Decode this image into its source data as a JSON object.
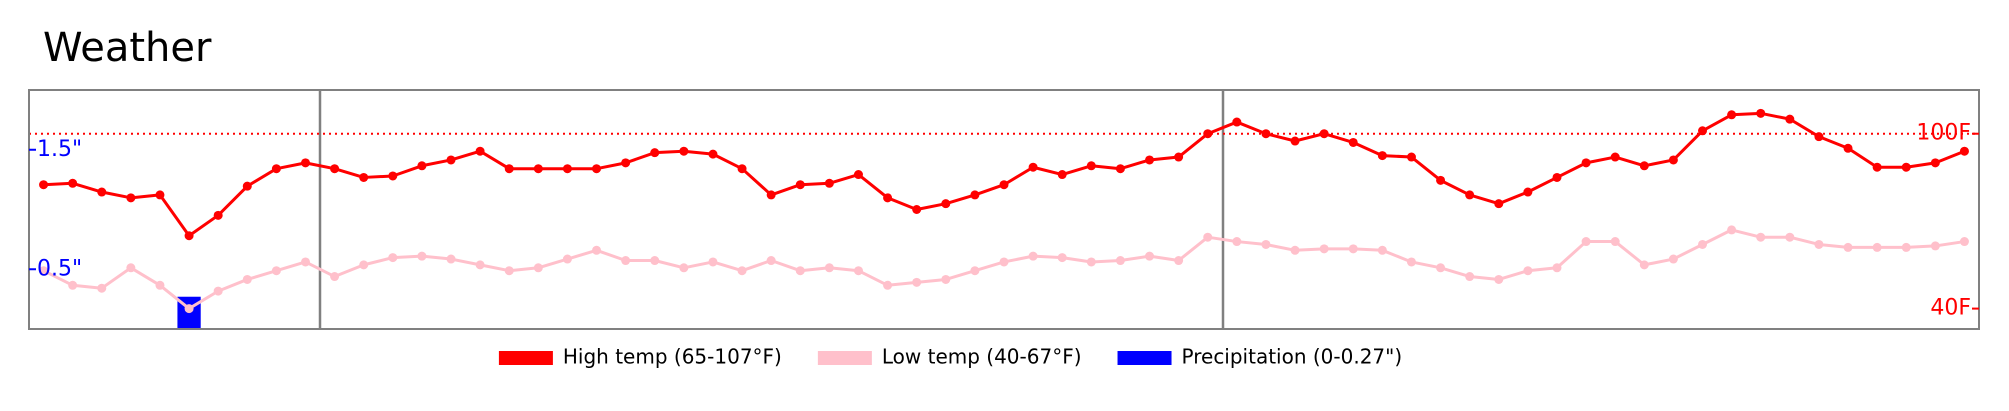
{
  "chart_data": {
    "type": "line",
    "title": "Weather",
    "ylim": [
      0,
      2
    ],
    "yticks": [
      {
        "value": 1.5,
        "label": "1.5\""
      },
      {
        "value": 0.5,
        "label": "0.5\""
      }
    ],
    "y2lim": [
      33,
      115
    ],
    "y2ticks": [
      {
        "value": 100,
        "label": "100F"
      },
      {
        "value": 40,
        "label": "40F"
      }
    ],
    "legend": "bottom",
    "series": [
      {
        "name": "High temp (65-107°F)",
        "color": "#ff0000",
        "type": "line",
        "axis": "y2",
        "values": [
          82.5,
          83,
          80,
          78,
          79,
          65,
          72,
          82,
          88,
          90,
          88,
          85,
          85.5,
          89,
          91,
          94,
          88,
          88,
          88,
          88,
          90,
          93.5,
          94,
          93,
          88,
          79,
          82.5,
          83,
          86,
          78,
          74,
          76,
          79,
          82.5,
          88.5,
          86,
          89,
          88,
          91,
          92,
          100,
          104,
          100,
          97.5,
          100,
          97,
          92.5,
          92,
          84,
          79,
          76,
          80,
          85,
          90,
          92,
          89,
          91,
          101,
          106.5,
          107,
          105,
          99,
          95,
          88.5,
          88.5,
          90,
          94
        ]
      },
      {
        "name": "Low temp (40-67°F)",
        "color": "#ffc0cb",
        "type": "line",
        "axis": "y2",
        "values": [
          53,
          48,
          47,
          54,
          48,
          40,
          46,
          50,
          53,
          56,
          51,
          55,
          57.5,
          58,
          57,
          55,
          53,
          54,
          57,
          60,
          56.5,
          56.5,
          54,
          56,
          53,
          56.5,
          53,
          54,
          53,
          48,
          49,
          50,
          53,
          56,
          58,
          57.5,
          56,
          56.5,
          58,
          56.5,
          64.5,
          63,
          62,
          60,
          60.5,
          60.5,
          60,
          56,
          54,
          51,
          50,
          53,
          54,
          63,
          63,
          55,
          57,
          62,
          67,
          64.5,
          64.5,
          62,
          61,
          61,
          61,
          61.5,
          63
        ]
      },
      {
        "name": "Precipitation (0-0.27\")",
        "color": "#0000ff",
        "type": "bar",
        "axis": "y",
        "values": [
          0,
          0,
          0,
          0,
          0,
          0.27,
          0,
          0,
          0,
          0,
          0,
          0,
          0,
          0,
          0,
          0,
          0,
          0,
          0,
          0,
          0,
          0,
          0,
          0,
          0,
          0,
          0,
          0,
          0,
          0,
          0,
          0,
          0,
          0,
          0,
          0,
          0,
          0,
          0,
          0,
          0,
          0,
          0,
          0,
          0,
          0,
          0,
          0,
          0,
          0,
          0,
          0,
          0,
          0,
          0,
          0,
          0,
          0,
          0,
          0,
          0,
          0,
          0,
          0,
          0,
          0,
          0
        ]
      }
    ]
  }
}
